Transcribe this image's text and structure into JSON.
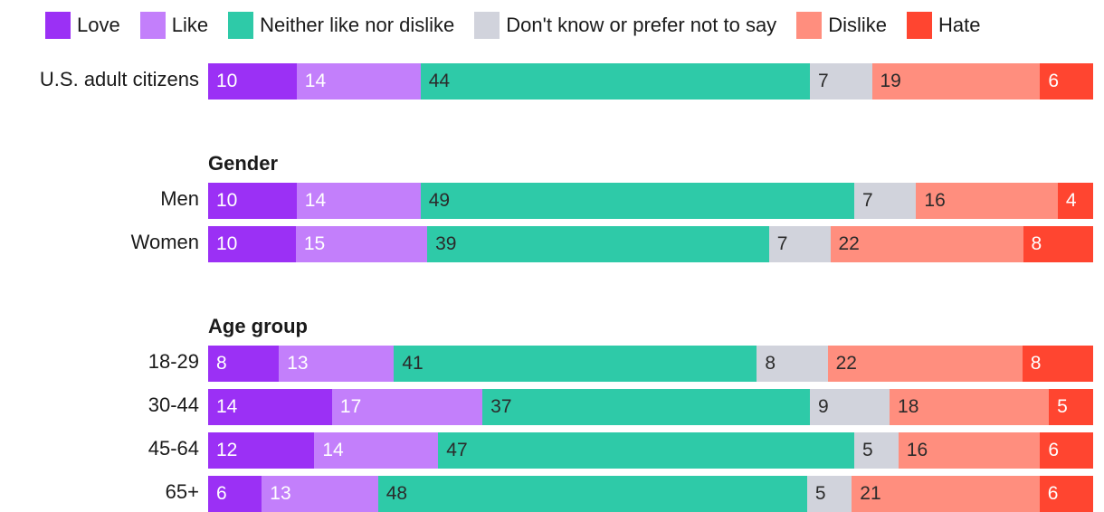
{
  "legend": [
    {
      "label": "Love",
      "color": "#9b30f5"
    },
    {
      "label": "Like",
      "color": "#c37ffb"
    },
    {
      "label": "Neither like nor dislike",
      "color": "#2ecaa8"
    },
    {
      "label": "Don't know or prefer not to say",
      "color": "#d1d3dc"
    },
    {
      "label": "Dislike",
      "color": "#ff8e7e"
    },
    {
      "label": "Hate",
      "color": "#ff4530"
    }
  ],
  "chart_data": {
    "type": "bar",
    "orientation": "horizontal",
    "stacked": true,
    "normalized": true,
    "series_names": [
      "Love",
      "Like",
      "Neither like nor dislike",
      "Don't know or prefer not to say",
      "Dislike",
      "Hate"
    ],
    "groups": [
      {
        "title": "",
        "rows": [
          {
            "label": "U.S. adult citizens",
            "values": [
              10,
              14,
              44,
              7,
              19,
              6
            ]
          }
        ]
      },
      {
        "title": "Gender",
        "rows": [
          {
            "label": "Men",
            "values": [
              10,
              14,
              49,
              7,
              16,
              4
            ]
          },
          {
            "label": "Women",
            "values": [
              10,
              15,
              39,
              7,
              22,
              8
            ]
          }
        ]
      },
      {
        "title": "Age group",
        "rows": [
          {
            "label": "18-29",
            "values": [
              8,
              13,
              41,
              8,
              22,
              8
            ]
          },
          {
            "label": "30-44",
            "values": [
              14,
              17,
              37,
              9,
              18,
              5
            ]
          },
          {
            "label": "45-64",
            "values": [
              12,
              14,
              47,
              5,
              16,
              6
            ]
          },
          {
            "label": "65+",
            "values": [
              6,
              13,
              48,
              5,
              21,
              6
            ]
          }
        ]
      }
    ]
  }
}
